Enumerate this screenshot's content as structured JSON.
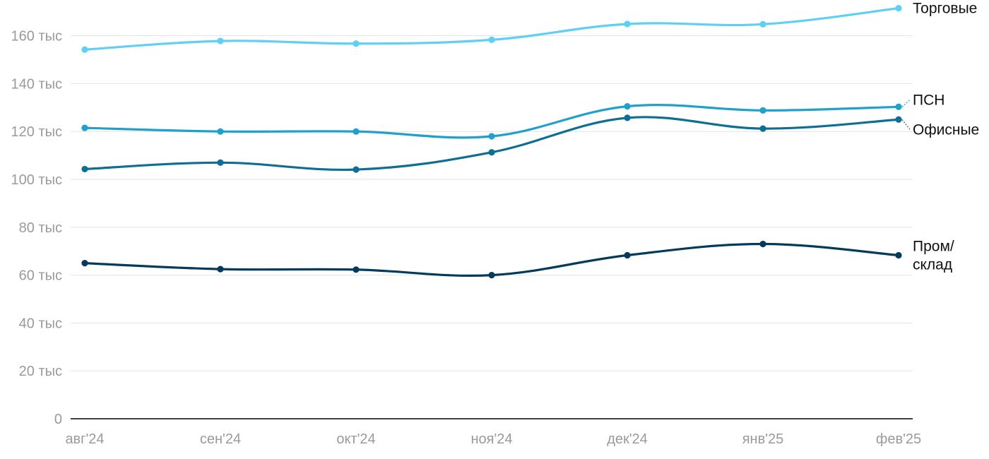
{
  "chart_data": {
    "type": "line",
    "title": "",
    "xlabel": "",
    "ylabel": "",
    "categories": [
      "авг'24",
      "сен'24",
      "окт'24",
      "ноя'24",
      "дек'24",
      "янв'25",
      "фев'25"
    ],
    "ylim": [
      0,
      170000
    ],
    "y_ticks": [
      0,
      20000,
      40000,
      60000,
      80000,
      100000,
      120000,
      140000,
      160000
    ],
    "y_tick_labels": [
      "0",
      "20 тыс",
      "40 тыс",
      "60 тыс",
      "80 тыс",
      "100 тыс",
      "120 тыс",
      "140 тыс",
      "160 тыс"
    ],
    "grid": true,
    "legend": "direct labels at line ends (right)",
    "series": [
      {
        "name": "Торговые",
        "label_lines": [
          "Торговые"
        ],
        "color": "#5ecff5",
        "values": [
          154200,
          157800,
          156700,
          158300,
          164900,
          164800,
          171500
        ]
      },
      {
        "name": "ПСН",
        "label_lines": [
          "ПСН"
        ],
        "color": "#21a0cc",
        "values": [
          121500,
          120000,
          120000,
          118000,
          130500,
          128800,
          130300
        ]
      },
      {
        "name": "Офисные",
        "label_lines": [
          "Офисные"
        ],
        "color": "#0f6e93",
        "values": [
          104300,
          107000,
          104100,
          111300,
          125700,
          121200,
          125000
        ]
      },
      {
        "name": "Пром/склад",
        "label_lines": [
          "Пром/",
          "склад"
        ],
        "color": "#053a5c",
        "values": [
          65000,
          62500,
          62300,
          60000,
          68300,
          73000,
          68300
        ]
      }
    ]
  }
}
